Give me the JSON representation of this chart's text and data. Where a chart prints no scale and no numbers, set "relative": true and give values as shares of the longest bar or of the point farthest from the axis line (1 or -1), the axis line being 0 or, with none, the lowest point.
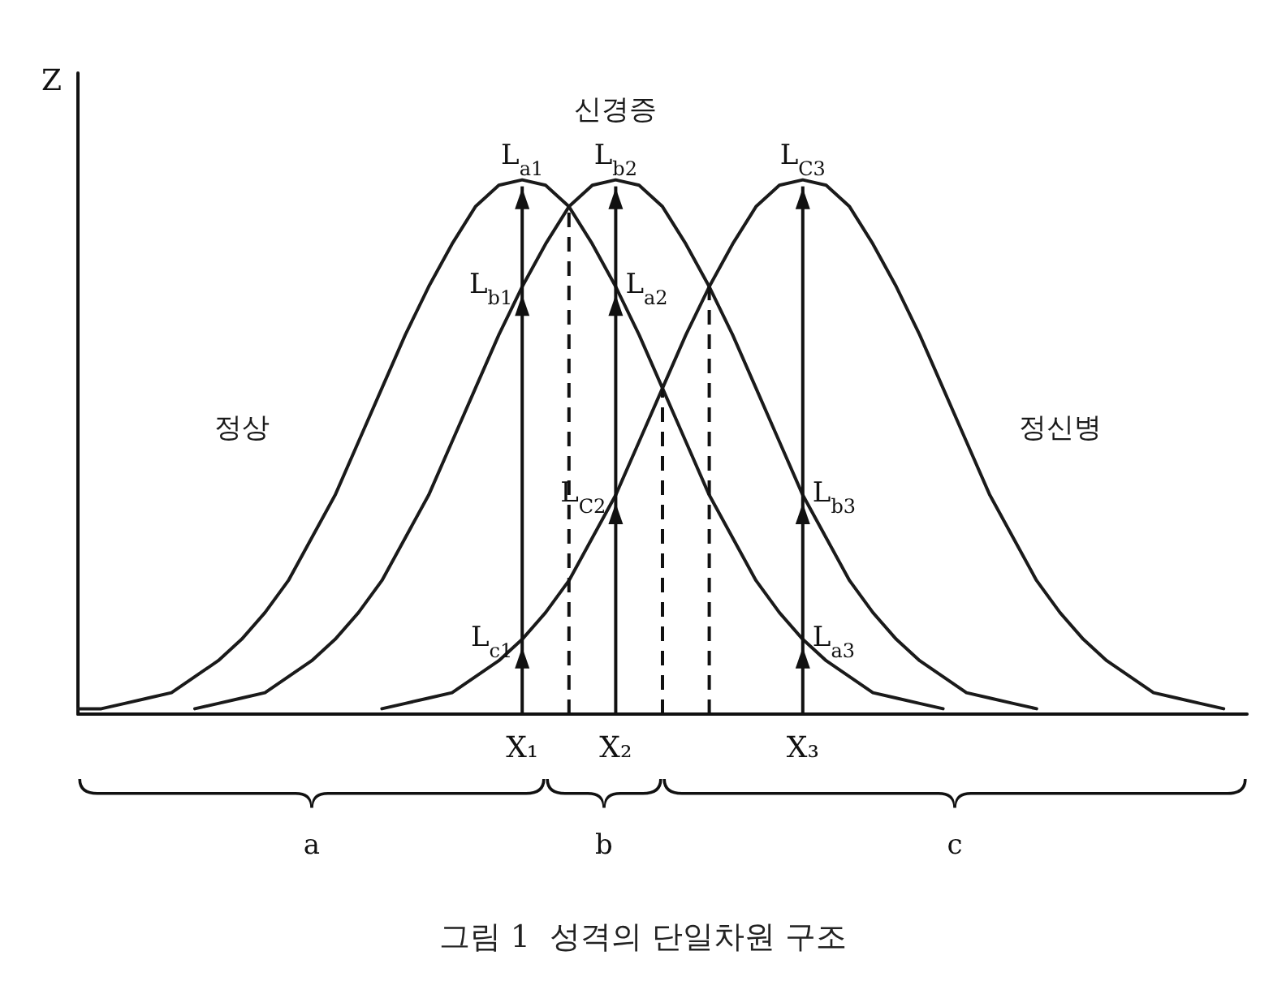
{
  "chart_data": {
    "type": "line",
    "title": "그림 1  성격의 단일차원 구조",
    "ylabel": "Z",
    "relative": true,
    "marker": "none",
    "categories": [
      null,
      null,
      null,
      null,
      null,
      null,
      null,
      null,
      null,
      null,
      null,
      null,
      null,
      null,
      null,
      null,
      null,
      null,
      null,
      "X₁",
      null,
      null,
      null,
      "X₂",
      null,
      null,
      null,
      null,
      null,
      null,
      null,
      "X₃",
      null,
      null,
      null,
      null,
      null,
      null,
      null,
      null,
      null,
      null,
      null,
      null,
      null,
      null,
      null,
      null,
      null,
      null,
      null
    ],
    "series": [
      {
        "name": "정상",
        "color": "#1a1a1a",
        "values": [
          0.01,
          0.01,
          0.02,
          0.03,
          0.04,
          0.07,
          0.1,
          0.14,
          0.19,
          0.25,
          0.33,
          0.41,
          0.51,
          0.61,
          0.71,
          0.8,
          0.88,
          0.95,
          0.99,
          1,
          0.99,
          0.95,
          0.88,
          0.8,
          0.71,
          0.61,
          0.51,
          0.41,
          0.33,
          0.25,
          0.19,
          0.14,
          0.1,
          0.07,
          0.04,
          0.03,
          0.02,
          0.01,
          null,
          null,
          null,
          null,
          null,
          null,
          null,
          null,
          null,
          null,
          null,
          null,
          null
        ]
      },
      {
        "name": "신경증",
        "color": "#1a1a1a",
        "values": [
          null,
          null,
          null,
          null,
          null,
          0.01,
          0.02,
          0.03,
          0.04,
          0.07,
          0.1,
          0.14,
          0.19,
          0.25,
          0.33,
          0.41,
          0.51,
          0.61,
          0.71,
          0.8,
          0.88,
          0.95,
          0.99,
          1,
          0.99,
          0.95,
          0.88,
          0.8,
          0.71,
          0.61,
          0.51,
          0.41,
          0.33,
          0.25,
          0.19,
          0.14,
          0.1,
          0.07,
          0.04,
          0.03,
          0.02,
          0.01,
          null,
          null,
          null,
          null,
          null,
          null,
          null,
          null,
          null
        ]
      },
      {
        "name": "정신병",
        "color": "#1a1a1a",
        "values": [
          null,
          null,
          null,
          null,
          null,
          null,
          null,
          null,
          null,
          null,
          null,
          null,
          null,
          0.01,
          0.02,
          0.03,
          0.04,
          0.07,
          0.1,
          0.14,
          0.19,
          0.25,
          0.33,
          0.41,
          0.51,
          0.61,
          0.71,
          0.8,
          0.88,
          0.95,
          0.99,
          1,
          0.99,
          0.95,
          0.88,
          0.8,
          0.71,
          0.61,
          0.51,
          0.41,
          0.33,
          0.25,
          0.19,
          0.14,
          0.1,
          0.07,
          0.04,
          0.03,
          0.02,
          0.01,
          null
        ]
      }
    ],
    "annotations": [
      {
        "text": "L$_{a1}$",
        "x": "X₁",
        "y": 1
      },
      {
        "text": "L$_{b1}$",
        "x": "X₁",
        "y": 0.8
      },
      {
        "text": "L$_{c1}$",
        "x": "X₁",
        "y": 0.14
      },
      {
        "text": "L$_{b2}$",
        "x": "X₂",
        "y": 1
      },
      {
        "text": "L$_{a2}$",
        "x": "X₂",
        "y": 0.8
      },
      {
        "text": "L$_{C2}$",
        "x": "X₂",
        "y": 0.41
      },
      {
        "text": "L$_{C3}$",
        "x": "X₃",
        "y": 1
      },
      {
        "text": "L$_{b3}$",
        "x": "X₃",
        "y": 0.41
      },
      {
        "text": "L$_{a3}$",
        "x": "X₃",
        "y": 0.14
      },
      "a",
      "b",
      "c"
    ]
  }
}
